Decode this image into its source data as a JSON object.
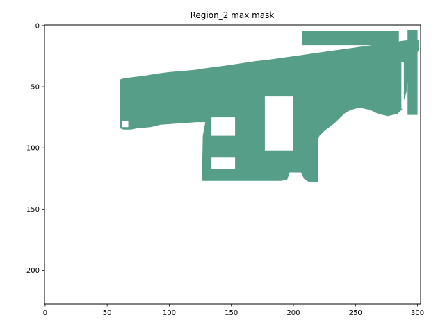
{
  "chart_data": {
    "type": "heatmap",
    "title": "Region_2 max mask",
    "xlabel": "",
    "ylabel": "",
    "xlim": [
      -0.5,
      302.5
    ],
    "ylim": [
      227.5,
      -0.5
    ],
    "x_ticks": [
      0,
      50,
      100,
      150,
      200,
      250,
      300
    ],
    "y_ticks": [
      0,
      50,
      100,
      150,
      200
    ],
    "grid": false,
    "mask_color": "#579e88",
    "background_color": "#ffffff",
    "mask_regions": [
      {
        "kind": "main-body",
        "points": [
          [
            60.5,
            44
          ],
          [
            63.5,
            43
          ],
          [
            72,
            42
          ],
          [
            80,
            41
          ],
          [
            92,
            39
          ],
          [
            100,
            38
          ],
          [
            112,
            37
          ],
          [
            122,
            36
          ],
          [
            128,
            35
          ],
          [
            135,
            34
          ],
          [
            143,
            33
          ],
          [
            150,
            32
          ],
          [
            157,
            31
          ],
          [
            163,
            30
          ],
          [
            170,
            29
          ],
          [
            179,
            28
          ],
          [
            186,
            27
          ],
          [
            193,
            26
          ],
          [
            200,
            25
          ],
          [
            207,
            24
          ],
          [
            214,
            23
          ],
          [
            221,
            22
          ],
          [
            228,
            21
          ],
          [
            235,
            20
          ],
          [
            242,
            19
          ],
          [
            249,
            18
          ],
          [
            256,
            17
          ],
          [
            263,
            16
          ],
          [
            270,
            15
          ],
          [
            277,
            14
          ],
          [
            284,
            13
          ],
          [
            291,
            12
          ],
          [
            301,
            11.5
          ],
          [
            301,
            20
          ],
          [
            296,
            28
          ],
          [
            294,
            37
          ],
          [
            292,
            47
          ],
          [
            291,
            55
          ],
          [
            289,
            61
          ],
          [
            288,
            68
          ],
          [
            284,
            72
          ],
          [
            276,
            74
          ],
          [
            268,
            72
          ],
          [
            262,
            69
          ],
          [
            253,
            67
          ],
          [
            246,
            69
          ],
          [
            241,
            72
          ],
          [
            237,
            76
          ],
          [
            233,
            80
          ],
          [
            229,
            83
          ],
          [
            225,
            86
          ],
          [
            221,
            90
          ],
          [
            220,
            93
          ],
          [
            220,
            128
          ],
          [
            213,
            128
          ],
          [
            209,
            126
          ],
          [
            206,
            120
          ],
          [
            197,
            120
          ],
          [
            195,
            126
          ],
          [
            190,
            127
          ],
          [
            126.5,
            127
          ],
          [
            126.5,
            115
          ],
          [
            127,
            90
          ],
          [
            129,
            79
          ],
          [
            122,
            79
          ],
          [
            108,
            80
          ],
          [
            93,
            81
          ],
          [
            85,
            83
          ],
          [
            74,
            84
          ],
          [
            69,
            85
          ],
          [
            63,
            85
          ],
          [
            60.5,
            84
          ]
        ]
      },
      {
        "kind": "strip",
        "points": [
          [
            292,
            3.5
          ],
          [
            300,
            3.5
          ],
          [
            300,
            73
          ],
          [
            292,
            73
          ]
        ]
      },
      {
        "kind": "top-band",
        "points": [
          [
            207,
            4.5
          ],
          [
            285,
            4.5
          ],
          [
            285,
            16
          ],
          [
            207,
            16
          ]
        ]
      }
    ],
    "holes": [
      {
        "kind": "window",
        "points": [
          [
            177,
            58
          ],
          [
            200,
            58
          ],
          [
            200,
            102
          ],
          [
            177,
            102
          ]
        ]
      },
      {
        "kind": "window",
        "points": [
          [
            134,
            75
          ],
          [
            153,
            75
          ],
          [
            153,
            90
          ],
          [
            134,
            90
          ]
        ]
      },
      {
        "kind": "window",
        "points": [
          [
            134,
            108
          ],
          [
            153,
            108
          ],
          [
            153,
            117
          ],
          [
            134,
            117
          ]
        ]
      },
      {
        "kind": "notch",
        "points": [
          [
            62,
            78
          ],
          [
            67,
            78
          ],
          [
            67,
            83
          ],
          [
            62,
            83
          ]
        ]
      },
      {
        "kind": "slit",
        "points": [
          [
            287,
            30
          ],
          [
            289,
            30
          ],
          [
            289,
            68
          ],
          [
            287,
            68
          ]
        ]
      }
    ]
  }
}
